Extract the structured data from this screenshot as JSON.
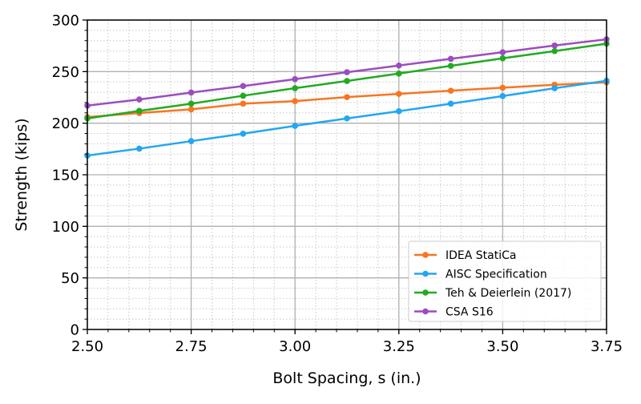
{
  "chart_data": {
    "type": "line",
    "title": "",
    "xlabel": "Bolt Spacing, s (in.)",
    "ylabel": "Strength (kips)",
    "xlim": [
      2.5,
      3.75
    ],
    "ylim": [
      0,
      300
    ],
    "x_ticks": [
      "2.50",
      "2.75",
      "3.00",
      "3.25",
      "3.50",
      "3.75"
    ],
    "y_ticks": [
      "0",
      "50",
      "100",
      "150",
      "200",
      "250",
      "300"
    ],
    "grid": {
      "major": true,
      "minor": true,
      "minor_style": "dotted"
    },
    "legend_position": "lower-right",
    "x": [
      2.5,
      2.625,
      2.75,
      2.875,
      3.0,
      3.125,
      3.25,
      3.375,
      3.5,
      3.625,
      3.75
    ],
    "series": [
      {
        "name": "IDEA StatiCa",
        "color": "#f97520",
        "values": [
          205.9,
          209.8,
          213.4,
          218.9,
          221.4,
          225.3,
          228.4,
          231.5,
          234.4,
          237.2,
          239.6
        ]
      },
      {
        "name": "AISC Specification",
        "color": "#22a7f0",
        "values": [
          168.6,
          175.3,
          182.6,
          189.8,
          197.4,
          204.6,
          211.6,
          218.9,
          226.3,
          233.9,
          241.1
        ]
      },
      {
        "name": "Teh & Deierlein (2017)",
        "color": "#22aa22",
        "values": [
          204.6,
          211.9,
          218.9,
          226.6,
          233.9,
          240.9,
          248.1,
          255.6,
          262.9,
          269.9,
          277.1
        ]
      },
      {
        "name": "CSA S16",
        "color": "#9b4dbf",
        "values": [
          217.0,
          223.0,
          229.7,
          236.0,
          242.7,
          249.4,
          255.9,
          262.4,
          268.8,
          275.3,
          281.3
        ]
      }
    ]
  }
}
